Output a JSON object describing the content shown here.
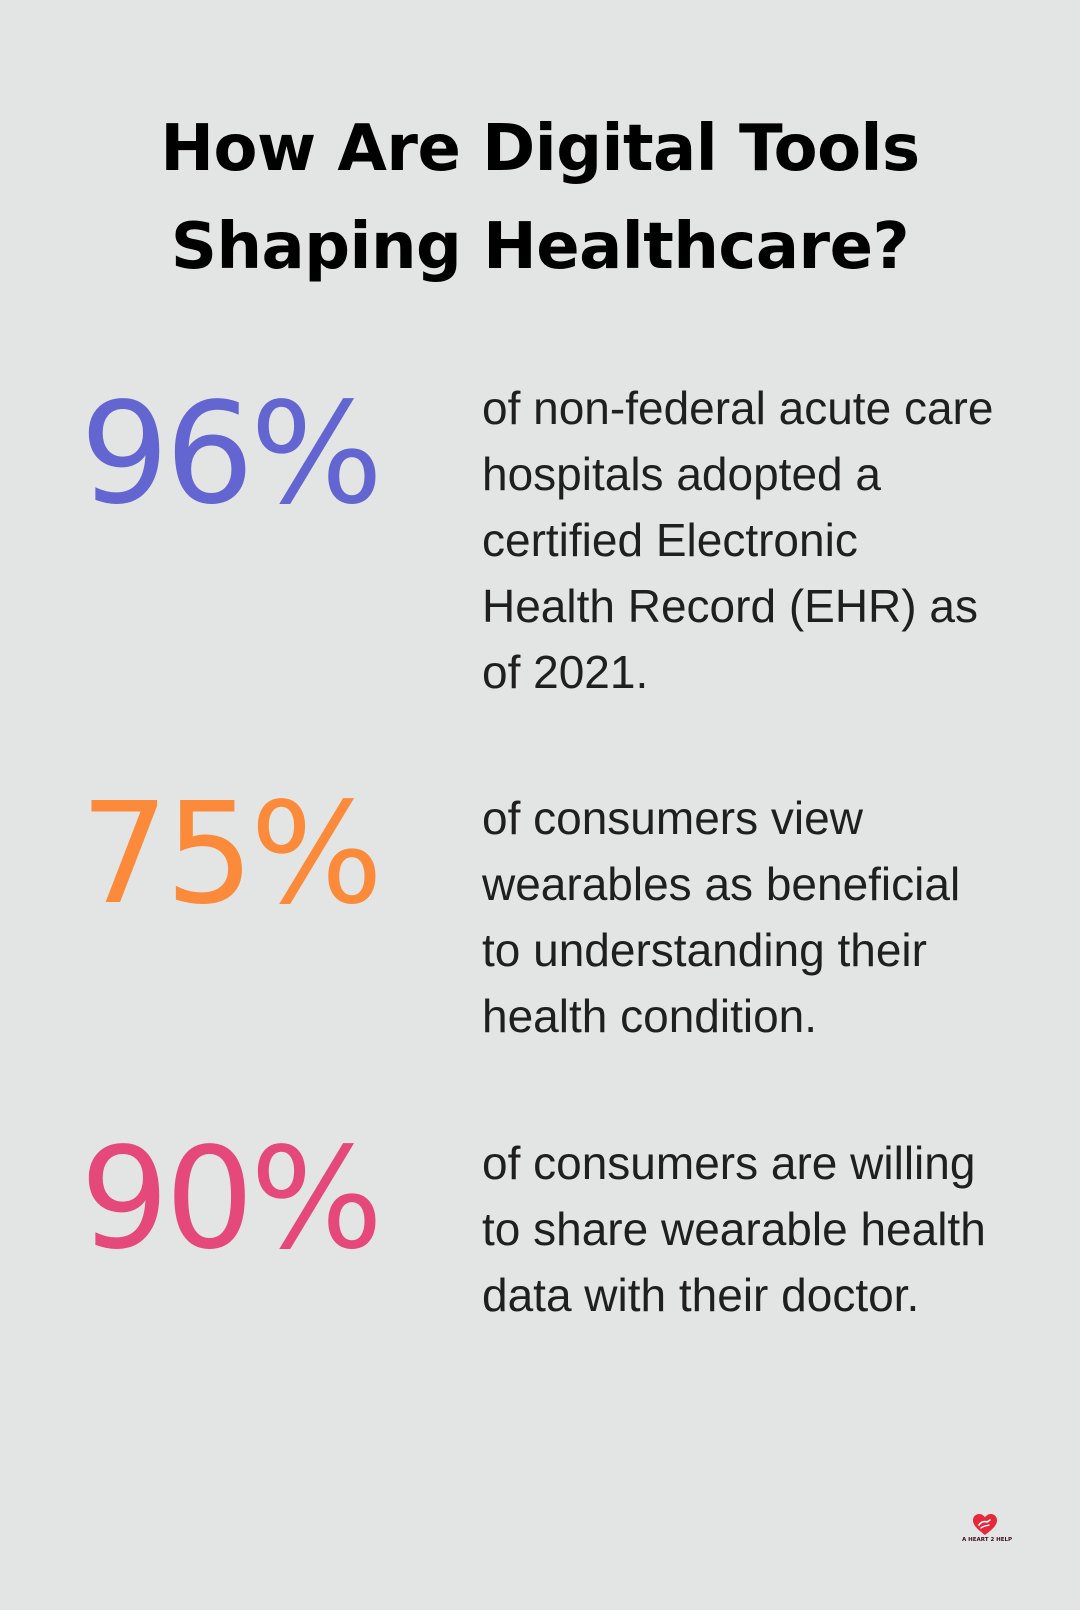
{
  "title": "How Are Digital Tools Shaping Healthcare?",
  "stats": [
    {
      "value": "96%",
      "description": "of non-federal acute care hospitals adopted a certified Electronic Health Record (EHR) as of 2021.",
      "color": "#6366d1"
    },
    {
      "value": "75%",
      "description": "of consumers view wearables as beneficial to understanding their health condition.",
      "color": "#fb8b3a"
    },
    {
      "value": "90%",
      "description": "of consumers are willing to share wearable health data with their doctor.",
      "color": "#e5487a"
    }
  ],
  "logo": {
    "text": "A HEART 2 HELP",
    "icon": "heart-logo-icon",
    "color": "#e5283a"
  }
}
